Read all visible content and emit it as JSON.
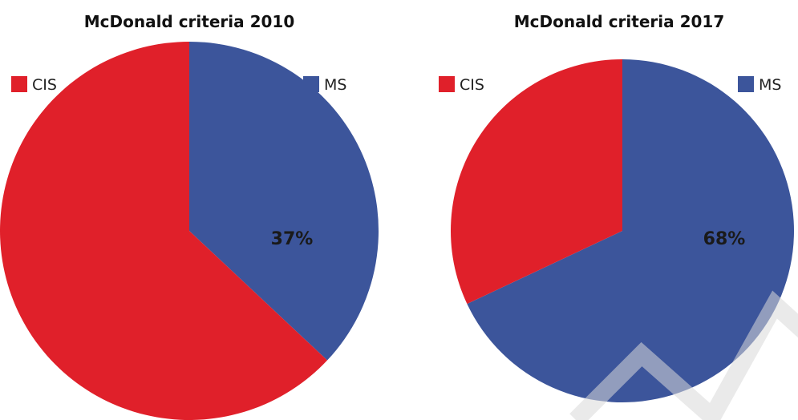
{
  "colors": {
    "CIS": "#e0202a",
    "MS": "#3c559b"
  },
  "chart_data": [
    {
      "type": "pie",
      "title": "McDonald criteria 2010",
      "categories": [
        "MS",
        "CIS"
      ],
      "values": [
        37,
        63
      ],
      "data_labels": [
        "37%",
        ""
      ],
      "legend": [
        "CIS",
        "MS"
      ],
      "start_angle": "12 o'clock",
      "direction": "clockwise"
    },
    {
      "type": "pie",
      "title": "McDonald criteria 2017",
      "categories": [
        "MS",
        "CIS"
      ],
      "values": [
        68,
        32
      ],
      "data_labels": [
        "68%",
        ""
      ],
      "legend": [
        "CIS",
        "MS"
      ],
      "start_angle": "12 o'clock",
      "direction": "clockwise"
    }
  ]
}
